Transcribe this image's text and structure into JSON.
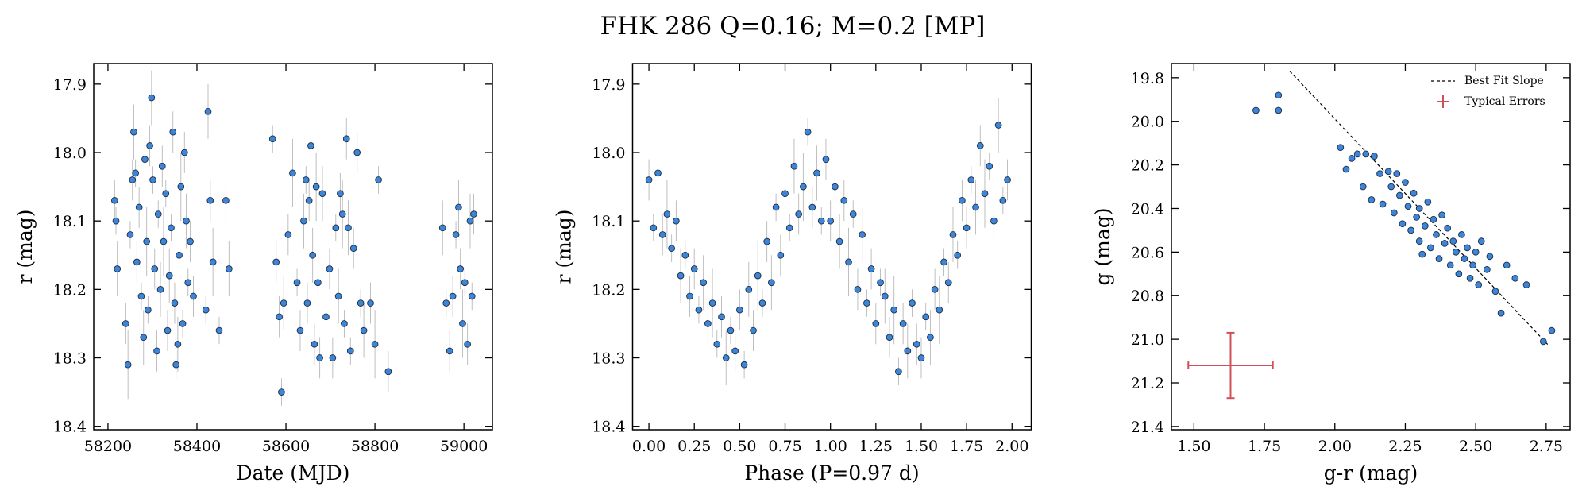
{
  "title": "FHK 286  Q=0.16; M=0.2 [MP]",
  "chart_data": [
    {
      "type": "scatter",
      "xlabel": "Date (MJD)",
      "ylabel": "r (mag)",
      "xlim": [
        58168,
        59064
      ],
      "ylim": [
        17.87,
        18.405
      ],
      "invert_y": true,
      "xticks": [
        58200,
        58400,
        58600,
        58800,
        59000
      ],
      "yticks": [
        17.9,
        {
          "value": 18,
          "label": "18.0"
        },
        18.1,
        18.2,
        18.3,
        18.4
      ],
      "color": "#3d85d6",
      "error_color": "#9a9a9a",
      "x": [
        58215,
        58218,
        58221,
        58240,
        58245,
        58250,
        58255,
        58258,
        58262,
        58265,
        58270,
        58275,
        58280,
        58283,
        58287,
        58290,
        58294,
        58298,
        58301,
        58305,
        58310,
        58313,
        58318,
        58322,
        58325,
        58330,
        58334,
        58338,
        58342,
        58346,
        58350,
        58353,
        58357,
        58360,
        58364,
        58368,
        58372,
        58376,
        58380,
        58385,
        58392,
        58420,
        58425,
        58430,
        58436,
        58450,
        58465,
        58472,
        58570,
        58578,
        58585,
        58590,
        58595,
        58605,
        58615,
        58625,
        58632,
        58640,
        58645,
        58648,
        58652,
        58656,
        58660,
        58664,
        58668,
        58672,
        58676,
        58682,
        58690,
        58698,
        58705,
        58712,
        58718,
        58722,
        58727,
        58731,
        58736,
        58740,
        58745,
        58752,
        58760,
        58768,
        58775,
        58790,
        58800,
        58808,
        58830,
        58952,
        58960,
        58968,
        58975,
        58982,
        58988,
        58992,
        58997,
        59002,
        59008,
        59014,
        59018,
        59022
      ],
      "y": [
        18.07,
        18.1,
        18.17,
        18.25,
        18.31,
        18.12,
        18.04,
        17.97,
        18.03,
        18.16,
        18.08,
        18.21,
        18.27,
        18.01,
        18.13,
        18.23,
        17.99,
        17.92,
        18.04,
        18.17,
        18.29,
        18.09,
        18.2,
        18.02,
        18.13,
        18.06,
        18.26,
        18.18,
        18.11,
        17.97,
        18.22,
        18.31,
        18.28,
        18.15,
        18.05,
        18.25,
        18.0,
        18.1,
        18.19,
        18.13,
        18.21,
        18.23,
        17.94,
        18.07,
        18.16,
        18.26,
        18.07,
        18.17,
        17.98,
        18.16,
        18.24,
        18.35,
        18.22,
        18.12,
        18.03,
        18.19,
        18.26,
        18.1,
        18.04,
        18.22,
        18.07,
        17.99,
        18.15,
        18.28,
        18.05,
        18.19,
        18.3,
        18.06,
        18.24,
        18.17,
        18.3,
        18.11,
        18.21,
        18.06,
        18.09,
        18.25,
        17.98,
        18.11,
        18.29,
        18.14,
        18.0,
        18.22,
        18.26,
        18.22,
        18.28,
        18.04,
        18.32,
        18.11,
        18.22,
        18.29,
        18.21,
        18.12,
        18.08,
        18.17,
        18.25,
        18.19,
        18.28,
        18.1,
        18.21,
        18.09
      ],
      "yerr": [
        0.03,
        0.02,
        0.04,
        0.03,
        0.05,
        0.02,
        0.03,
        0.04,
        0.02,
        0.03,
        0.03,
        0.02,
        0.04,
        0.03,
        0.05,
        0.02,
        0.03,
        0.04,
        0.02,
        0.03,
        0.03,
        0.02,
        0.04,
        0.03,
        0.05,
        0.02,
        0.03,
        0.04,
        0.02,
        0.03,
        0.03,
        0.02,
        0.04,
        0.03,
        0.05,
        0.02,
        0.03,
        0.04,
        0.02,
        0.03,
        0.03,
        0.02,
        0.04,
        0.03,
        0.05,
        0.02,
        0.03,
        0.04,
        0.02,
        0.03,
        0.03,
        0.02,
        0.04,
        0.03,
        0.05,
        0.02,
        0.03,
        0.04,
        0.02,
        0.03,
        0.03,
        0.02,
        0.04,
        0.03,
        0.05,
        0.02,
        0.03,
        0.04,
        0.02,
        0.03,
        0.03,
        0.02,
        0.04,
        0.03,
        0.05,
        0.02,
        0.03,
        0.04,
        0.02,
        0.03,
        0.03,
        0.02,
        0.04,
        0.03,
        0.05,
        0.02,
        0.03,
        0.04,
        0.02,
        0.03,
        0.03,
        0.02,
        0.04,
        0.03,
        0.05,
        0.02,
        0.03,
        0.04,
        0.02,
        0.03
      ]
    },
    {
      "type": "scatter",
      "xlabel": "Phase (P=0.97 d)",
      "ylabel": "r (mag)",
      "xlim": [
        -0.09,
        2.106
      ],
      "ylim": [
        17.87,
        18.405
      ],
      "invert_y": true,
      "xticks": [
        {
          "value": 0,
          "label": "0.00"
        },
        0.25,
        {
          "value": 0.5,
          "label": "0.50"
        },
        0.75,
        {
          "value": 1,
          "label": "1.00"
        },
        1.25,
        {
          "value": 1.5,
          "label": "1.50"
        },
        1.75,
        {
          "value": 2,
          "label": "2.00"
        }
      ],
      "yticks": [
        17.9,
        {
          "value": 18,
          "label": "18.0"
        },
        18.1,
        18.2,
        18.3,
        18.4
      ],
      "color": "#3d85d6",
      "error_color": "#9a9a9a",
      "x": [
        0,
        0.025,
        0.05,
        0.075,
        0.1,
        0.125,
        0.15,
        0.175,
        0.2,
        0.225,
        0.25,
        0.275,
        0.3,
        0.325,
        0.35,
        0.375,
        0.4,
        0.425,
        0.45,
        0.475,
        0.5,
        0.525,
        0.55,
        0.575,
        0.6,
        0.625,
        0.65,
        0.675,
        0.7,
        0.725,
        0.75,
        0.775,
        0.8,
        0.825,
        0.85,
        0.875,
        0.9,
        0.925,
        0.95,
        0.975,
        1,
        1.025,
        1.05,
        1.075,
        1.1,
        1.125,
        1.15,
        1.175,
        1.2,
        1.225,
        1.25,
        1.275,
        1.3,
        1.325,
        1.35,
        1.375,
        1.4,
        1.425,
        1.45,
        1.475,
        1.5,
        1.525,
        1.55,
        1.575,
        1.6,
        1.625,
        1.65,
        1.675,
        1.7,
        1.725,
        1.75,
        1.775,
        1.8,
        1.825,
        1.85,
        1.875,
        1.9,
        1.925,
        1.95,
        1.975
      ],
      "y": [
        18.04,
        18.11,
        18.03,
        18.12,
        18.09,
        18.14,
        18.1,
        18.18,
        18.15,
        18.21,
        18.17,
        18.23,
        18.19,
        18.25,
        18.22,
        18.28,
        18.24,
        18.3,
        18.26,
        18.29,
        18.23,
        18.31,
        18.2,
        18.26,
        18.18,
        18.22,
        18.13,
        18.19,
        18.08,
        18.15,
        18.06,
        18.11,
        18.02,
        18.09,
        18.05,
        17.97,
        18.08,
        18.03,
        18.1,
        18.01,
        18.1,
        18.05,
        18.13,
        18.07,
        18.16,
        18.09,
        18.2,
        18.12,
        18.22,
        18.17,
        18.25,
        18.19,
        18.21,
        18.27,
        18.23,
        18.32,
        18.25,
        18.29,
        18.22,
        18.28,
        18.3,
        18.24,
        18.27,
        18.2,
        18.23,
        18.16,
        18.19,
        18.12,
        18.15,
        18.07,
        18.11,
        18.04,
        18.08,
        17.99,
        18.06,
        18.02,
        18.1,
        17.96,
        18.07,
        18.04
      ],
      "yerr": [
        0.03,
        0.02,
        0.04,
        0.03,
        0.05,
        0.02,
        0.03,
        0.04,
        0.02,
        0.03,
        0.03,
        0.02,
        0.04,
        0.03,
        0.05,
        0.02,
        0.03,
        0.04,
        0.02,
        0.03,
        0.03,
        0.02,
        0.04,
        0.03,
        0.05,
        0.02,
        0.03,
        0.04,
        0.02,
        0.03,
        0.03,
        0.02,
        0.04,
        0.03,
        0.05,
        0.02,
        0.03,
        0.04,
        0.02,
        0.03,
        0.03,
        0.02,
        0.04,
        0.03,
        0.05,
        0.02,
        0.03,
        0.04,
        0.02,
        0.03,
        0.03,
        0.02,
        0.04,
        0.03,
        0.05,
        0.02,
        0.03,
        0.04,
        0.02,
        0.03,
        0.03,
        0.02,
        0.04,
        0.03,
        0.05,
        0.02,
        0.03,
        0.04,
        0.02,
        0.03,
        0.03,
        0.02,
        0.04,
        0.03,
        0.05,
        0.02,
        0.03,
        0.04,
        0.02,
        0.03
      ]
    },
    {
      "type": "scatter",
      "xlabel": "g-r (mag)",
      "ylabel": "g (mag)",
      "xlim": [
        1.42,
        2.835
      ],
      "ylim": [
        19.735,
        21.415
      ],
      "invert_y": true,
      "xticks": [
        {
          "value": 1.5,
          "label": "1.50"
        },
        1.75,
        {
          "value": 2,
          "label": "2.00"
        },
        2.25,
        {
          "value": 2.5,
          "label": "2.50"
        },
        2.75
      ],
      "yticks": [
        19.8,
        {
          "value": 20,
          "label": "20.0"
        },
        20.2,
        20.4,
        20.6,
        20.8,
        {
          "value": 21,
          "label": "21.0"
        },
        21.2,
        21.4
      ],
      "color": "#3d85d6",
      "legend": "upper right",
      "x": [
        1.72,
        1.8,
        1.8,
        2.02,
        2.04,
        2.06,
        2.08,
        2.1,
        2.11,
        2.13,
        2.14,
        2.16,
        2.17,
        2.19,
        2.2,
        2.21,
        2.22,
        2.23,
        2.24,
        2.25,
        2.26,
        2.27,
        2.28,
        2.29,
        2.3,
        2.3,
        2.31,
        2.32,
        2.33,
        2.34,
        2.35,
        2.36,
        2.37,
        2.38,
        2.39,
        2.4,
        2.41,
        2.42,
        2.43,
        2.44,
        2.45,
        2.46,
        2.47,
        2.48,
        2.49,
        2.5,
        2.51,
        2.52,
        2.54,
        2.55,
        2.57,
        2.59,
        2.61,
        2.64,
        2.68,
        2.74,
        2.77
      ],
      "y": [
        19.95,
        19.95,
        19.88,
        20.12,
        20.22,
        20.17,
        20.15,
        20.3,
        20.15,
        20.36,
        20.16,
        20.24,
        20.38,
        20.23,
        20.3,
        20.42,
        20.24,
        20.34,
        20.47,
        20.28,
        20.39,
        20.5,
        20.33,
        20.44,
        20.55,
        20.4,
        20.61,
        20.48,
        20.37,
        20.58,
        20.45,
        20.52,
        20.63,
        20.43,
        20.56,
        20.49,
        20.66,
        20.55,
        20.6,
        20.7,
        20.52,
        20.63,
        20.58,
        20.72,
        20.66,
        20.6,
        20.75,
        20.55,
        20.68,
        20.62,
        20.78,
        20.88,
        20.66,
        20.72,
        20.75,
        21.01,
        20.96
      ],
      "fit_line": {
        "name": "Best Fit Slope",
        "color": "#000000",
        "x": [
          1.84,
          2.76
        ],
        "y": [
          19.77,
          21.03
        ]
      },
      "typical_error": {
        "name": "Typical Errors",
        "color": "#d0505a",
        "x": 1.63,
        "y": 21.12,
        "xerr": 0.15,
        "yerr": 0.15
      }
    }
  ]
}
